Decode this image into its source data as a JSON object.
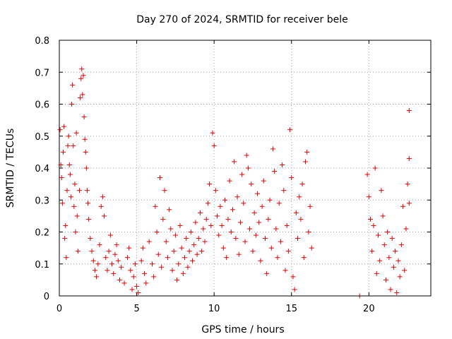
{
  "chart_data": {
    "type": "scatter",
    "title": "Day 270 of 2024, SRMTID for receiver bele",
    "xlabel": "GPS time / hours",
    "ylabel": "SRMTID / TECUs",
    "xlim": [
      0,
      24
    ],
    "ylim": [
      0,
      0.8
    ],
    "xticks": [
      0,
      5,
      10,
      15,
      20
    ],
    "yticks": [
      0,
      0.1,
      0.2,
      0.3,
      0.4,
      0.5,
      0.6,
      0.7,
      0.8
    ],
    "grid": true,
    "marker": "+",
    "color": "#e00000",
    "series": [
      {
        "name": "SRMTID",
        "points": [
          [
            0.05,
            0.52
          ],
          [
            0.1,
            0.41
          ],
          [
            0.15,
            0.37
          ],
          [
            0.2,
            0.29
          ],
          [
            0.25,
            0.45
          ],
          [
            0.3,
            0.53
          ],
          [
            0.35,
            0.18
          ],
          [
            0.4,
            0.22
          ],
          [
            0.45,
            0.12
          ],
          [
            0.5,
            0.33
          ],
          [
            0.55,
            0.47
          ],
          [
            0.6,
            0.5
          ],
          [
            0.65,
            0.41
          ],
          [
            0.7,
            0.38
          ],
          [
            0.75,
            0.31
          ],
          [
            0.8,
            0.6
          ],
          [
            0.85,
            0.66
          ],
          [
            0.9,
            0.47
          ],
          [
            0.95,
            0.28
          ],
          [
            1.0,
            0.35
          ],
          [
            1.05,
            0.2
          ],
          [
            1.1,
            0.51
          ],
          [
            1.15,
            0.25
          ],
          [
            1.2,
            0.14
          ],
          [
            1.3,
            0.33
          ],
          [
            1.35,
            0.62
          ],
          [
            1.4,
            0.68
          ],
          [
            1.45,
            0.71
          ],
          [
            1.5,
            0.63
          ],
          [
            1.55,
            0.69
          ],
          [
            1.6,
            0.56
          ],
          [
            1.65,
            0.49
          ],
          [
            1.7,
            0.45
          ],
          [
            1.75,
            0.4
          ],
          [
            1.8,
            0.33
          ],
          [
            1.85,
            0.29
          ],
          [
            1.9,
            0.24
          ],
          [
            2.0,
            0.18
          ],
          [
            2.1,
            0.14
          ],
          [
            2.2,
            0.11
          ],
          [
            2.3,
            0.08
          ],
          [
            2.4,
            0.06
          ],
          [
            2.5,
            0.1
          ],
          [
            2.6,
            0.16
          ],
          [
            2.7,
            0.28
          ],
          [
            2.8,
            0.31
          ],
          [
            2.9,
            0.25
          ],
          [
            3.0,
            0.12
          ],
          [
            3.1,
            0.08
          ],
          [
            3.2,
            0.14
          ],
          [
            3.3,
            0.19
          ],
          [
            3.4,
            0.1
          ],
          [
            3.5,
            0.07
          ],
          [
            3.6,
            0.13
          ],
          [
            3.7,
            0.16
          ],
          [
            3.8,
            0.11
          ],
          [
            3.9,
            0.05
          ],
          [
            4.0,
            0.09
          ],
          [
            4.2,
            0.04
          ],
          [
            4.4,
            0.12
          ],
          [
            4.5,
            0.15
          ],
          [
            4.6,
            0.08
          ],
          [
            4.7,
            0.02
          ],
          [
            4.8,
            0.06
          ],
          [
            4.9,
            0.1
          ],
          [
            5.0,
            0.03
          ],
          [
            5.1,
            0.01
          ],
          [
            5.3,
            0.11
          ],
          [
            5.4,
            0.15
          ],
          [
            5.5,
            0.07
          ],
          [
            5.6,
            0.04
          ],
          [
            5.8,
            0.17
          ],
          [
            6.0,
            0.1
          ],
          [
            6.1,
            0.06
          ],
          [
            6.2,
            0.28
          ],
          [
            6.3,
            0.2
          ],
          [
            6.4,
            0.13
          ],
          [
            6.5,
            0.37
          ],
          [
            6.6,
            0.09
          ],
          [
            6.7,
            0.24
          ],
          [
            6.8,
            0.33
          ],
          [
            6.9,
            0.17
          ],
          [
            7.0,
            0.12
          ],
          [
            7.1,
            0.27
          ],
          [
            7.2,
            0.21
          ],
          [
            7.3,
            0.08
          ],
          [
            7.4,
            0.14
          ],
          [
            7.5,
            0.19
          ],
          [
            7.6,
            0.05
          ],
          [
            7.7,
            0.1
          ],
          [
            7.8,
            0.22
          ],
          [
            7.9,
            0.15
          ],
          [
            8.0,
            0.07
          ],
          [
            8.1,
            0.12
          ],
          [
            8.2,
            0.18
          ],
          [
            8.3,
            0.09
          ],
          [
            8.4,
            0.14
          ],
          [
            8.5,
            0.2
          ],
          [
            8.6,
            0.11
          ],
          [
            8.7,
            0.16
          ],
          [
            8.8,
            0.23
          ],
          [
            8.9,
            0.13
          ],
          [
            9.0,
            0.18
          ],
          [
            9.1,
            0.26
          ],
          [
            9.2,
            0.14
          ],
          [
            9.3,
            0.21
          ],
          [
            9.4,
            0.17
          ],
          [
            9.5,
            0.24
          ],
          [
            9.6,
            0.29
          ],
          [
            9.7,
            0.35
          ],
          [
            9.8,
            0.22
          ],
          [
            9.9,
            0.51
          ],
          [
            10.0,
            0.47
          ],
          [
            10.1,
            0.33
          ],
          [
            10.2,
            0.25
          ],
          [
            10.3,
            0.19
          ],
          [
            10.4,
            0.28
          ],
          [
            10.5,
            0.22
          ],
          [
            10.6,
            0.15
          ],
          [
            10.7,
            0.3
          ],
          [
            10.8,
            0.12
          ],
          [
            10.9,
            0.24
          ],
          [
            11.0,
            0.36
          ],
          [
            11.1,
            0.2
          ],
          [
            11.2,
            0.27
          ],
          [
            11.3,
            0.42
          ],
          [
            11.4,
            0.18
          ],
          [
            11.5,
            0.31
          ],
          [
            11.6,
            0.13
          ],
          [
            11.7,
            0.23
          ],
          [
            11.8,
            0.38
          ],
          [
            11.9,
            0.29
          ],
          [
            12.0,
            0.17
          ],
          [
            12.1,
            0.44
          ],
          [
            12.2,
            0.4
          ],
          [
            12.3,
            0.21
          ],
          [
            12.4,
            0.35
          ],
          [
            12.5,
            0.14
          ],
          [
            12.6,
            0.26
          ],
          [
            12.7,
            0.19
          ],
          [
            12.8,
            0.32
          ],
          [
            12.9,
            0.23
          ],
          [
            13.0,
            0.11
          ],
          [
            13.1,
            0.28
          ],
          [
            13.2,
            0.36
          ],
          [
            13.3,
            0.18
          ],
          [
            13.4,
            0.07
          ],
          [
            13.5,
            0.24
          ],
          [
            13.6,
            0.3
          ],
          [
            13.7,
            0.15
          ],
          [
            13.8,
            0.46
          ],
          [
            13.9,
            0.39
          ],
          [
            14.0,
            0.21
          ],
          [
            14.1,
            0.12
          ],
          [
            14.2,
            0.29
          ],
          [
            14.3,
            0.17
          ],
          [
            14.4,
            0.41
          ],
          [
            14.5,
            0.33
          ],
          [
            14.6,
            0.08
          ],
          [
            14.7,
            0.22
          ],
          [
            14.8,
            0.14
          ],
          [
            14.9,
            0.52
          ],
          [
            15.0,
            0.37
          ],
          [
            15.1,
            0.06
          ],
          [
            15.2,
            0.02
          ],
          [
            15.3,
            0.26
          ],
          [
            15.4,
            0.18
          ],
          [
            15.5,
            0.31
          ],
          [
            15.6,
            0.24
          ],
          [
            15.7,
            0.35
          ],
          [
            15.8,
            0.12
          ],
          [
            15.9,
            0.42
          ],
          [
            16.0,
            0.45
          ],
          [
            16.1,
            0.2
          ],
          [
            16.2,
            0.28
          ],
          [
            16.3,
            0.15
          ],
          [
            19.4,
            0.0
          ],
          [
            19.9,
            0.38
          ],
          [
            20.0,
            0.31
          ],
          [
            20.1,
            0.24
          ],
          [
            20.2,
            0.14
          ],
          [
            20.3,
            0.22
          ],
          [
            20.4,
            0.4
          ],
          [
            20.5,
            0.07
          ],
          [
            20.6,
            0.19
          ],
          [
            20.7,
            0.11
          ],
          [
            20.8,
            0.33
          ],
          [
            20.9,
            0.25
          ],
          [
            21.0,
            0.16
          ],
          [
            21.1,
            0.05
          ],
          [
            21.2,
            0.2
          ],
          [
            21.3,
            0.12
          ],
          [
            21.4,
            0.02
          ],
          [
            21.5,
            0.18
          ],
          [
            21.6,
            0.09
          ],
          [
            21.7,
            0.14
          ],
          [
            21.8,
            0.01
          ],
          [
            21.9,
            0.11
          ],
          [
            22.0,
            0.06
          ],
          [
            22.1,
            0.16
          ],
          [
            22.2,
            0.28
          ],
          [
            22.3,
            0.08
          ],
          [
            22.4,
            0.21
          ],
          [
            22.5,
            0.35
          ],
          [
            22.6,
            0.43
          ],
          [
            22.6,
            0.58
          ],
          [
            22.6,
            0.29
          ]
        ]
      }
    ]
  }
}
